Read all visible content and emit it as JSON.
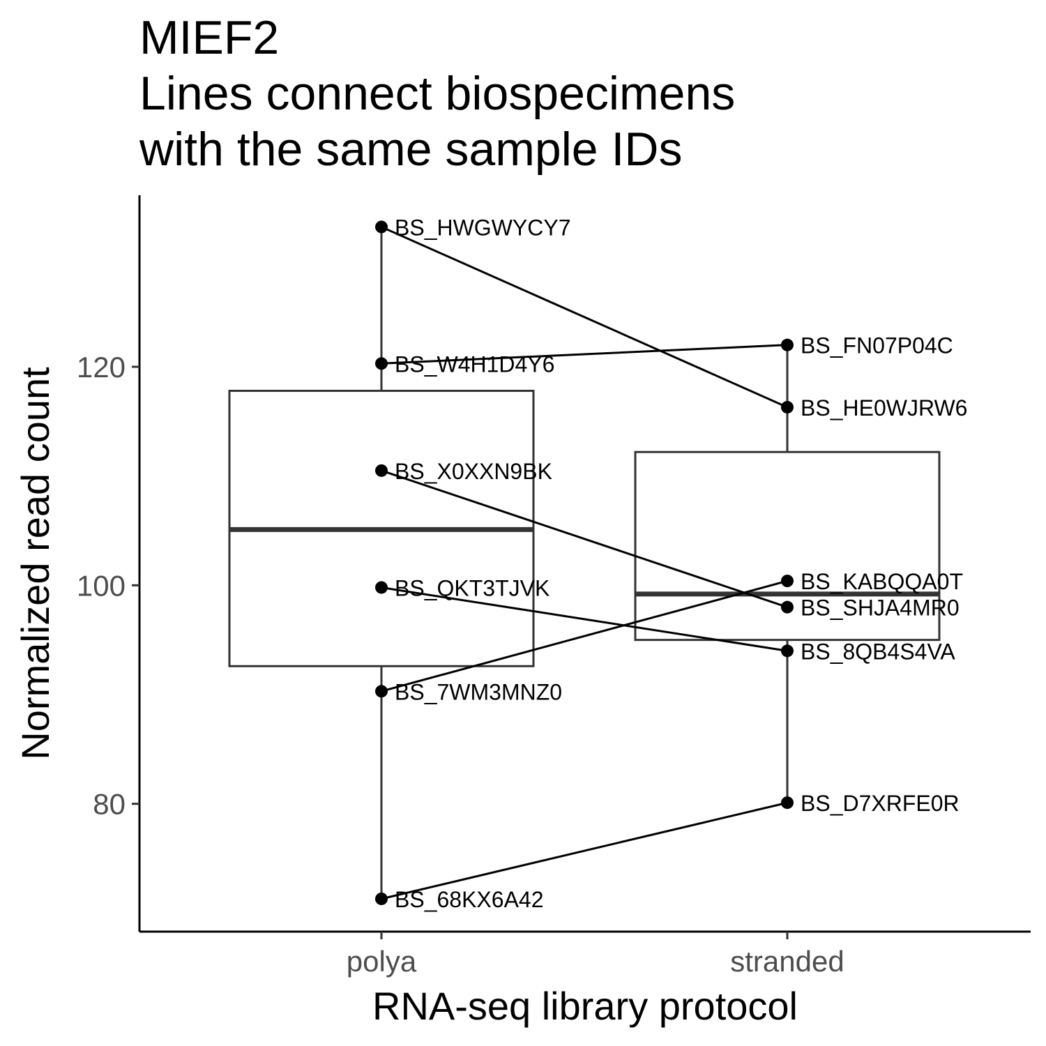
{
  "chart_data": {
    "type": "box",
    "title": "MIEF2\nLines connect biospecimens\nwith the same sample IDs",
    "xlabel": "RNA-seq library protocol",
    "ylabel": "Normalized read count",
    "categories": [
      "polya",
      "stranded"
    ],
    "ylim": [
      68.3,
      135.7
    ],
    "yticks": [
      80,
      100,
      120
    ],
    "grid": false,
    "boxes": [
      {
        "category": "polya",
        "min": 71.3,
        "q1": 92.6,
        "median": 105.1,
        "q3": 117.8,
        "max": 132.8
      },
      {
        "category": "stranded",
        "min": 80.1,
        "q1": 95.0,
        "median": 99.2,
        "q3": 112.2,
        "max": 122.0
      }
    ],
    "points": [
      {
        "category": "polya",
        "id": "BS_HWGWYCY7",
        "value": 132.8
      },
      {
        "category": "polya",
        "id": "BS_W4H1D4Y6",
        "value": 120.3
      },
      {
        "category": "polya",
        "id": "BS_X0XXN9BK",
        "value": 110.5
      },
      {
        "category": "polya",
        "id": "BS_QKT3TJVK",
        "value": 99.8
      },
      {
        "category": "polya",
        "id": "BS_7WM3MNZ0",
        "value": 90.3
      },
      {
        "category": "polya",
        "id": "BS_68KX6A42",
        "value": 71.3
      },
      {
        "category": "stranded",
        "id": "BS_FN07P04C",
        "value": 122.0
      },
      {
        "category": "stranded",
        "id": "BS_HE0WJRW6",
        "value": 116.3
      },
      {
        "category": "stranded",
        "id": "BS_KABQQA0T",
        "value": 100.4
      },
      {
        "category": "stranded",
        "id": "BS_SHJA4MR0",
        "value": 98.0
      },
      {
        "category": "stranded",
        "id": "BS_8QB4S4VA",
        "value": 94.0
      },
      {
        "category": "stranded",
        "id": "BS_D7XRFE0R",
        "value": 80.1
      }
    ],
    "links": [
      [
        "BS_HWGWYCY7",
        "BS_HE0WJRW6"
      ],
      [
        "BS_W4H1D4Y6",
        "BS_FN07P04C"
      ],
      [
        "BS_X0XXN9BK",
        "BS_SHJA4MR0"
      ],
      [
        "BS_QKT3TJVK",
        "BS_8QB4S4VA"
      ],
      [
        "BS_7WM3MNZ0",
        "BS_KABQQA0T"
      ],
      [
        "BS_68KX6A42",
        "BS_D7XRFE0R"
      ]
    ]
  }
}
